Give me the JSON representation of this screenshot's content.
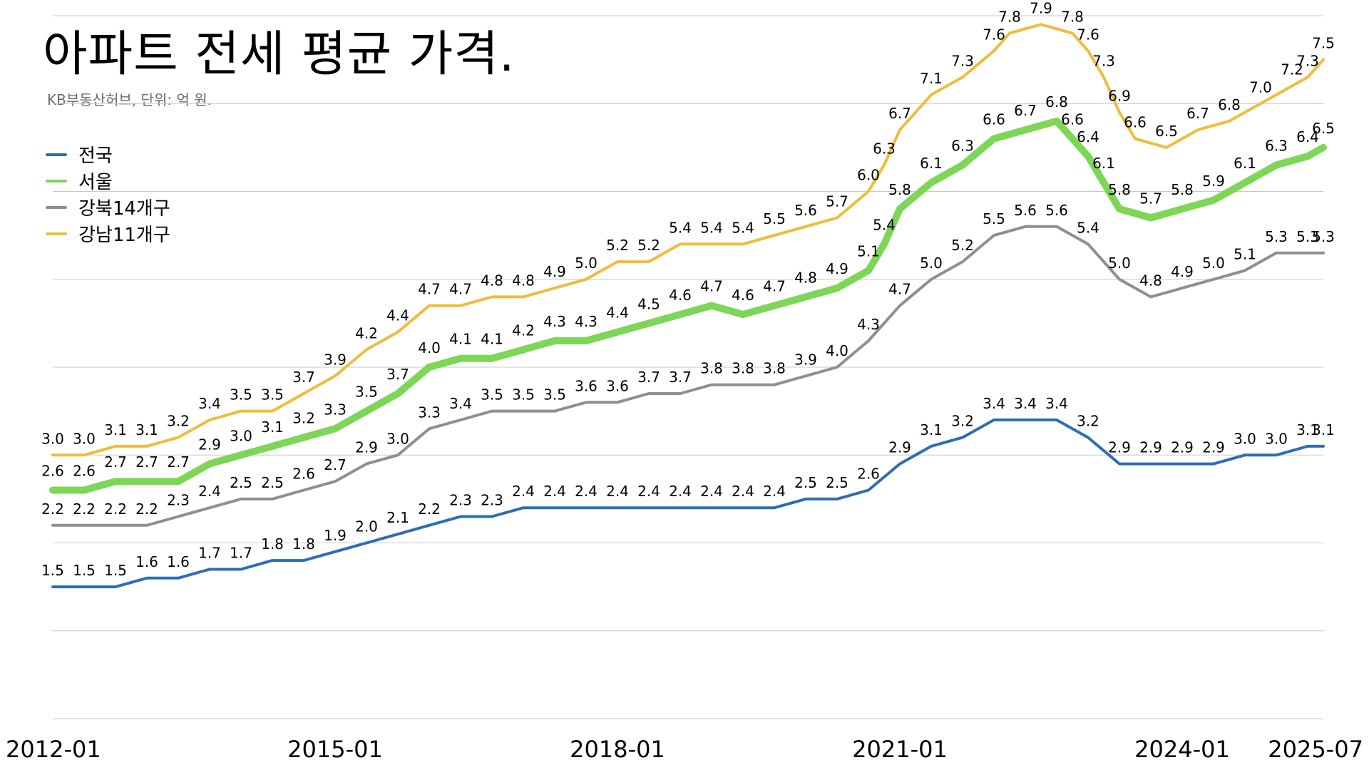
{
  "page": {
    "title": "아파트 전세 평균 가격.",
    "subtitle": "KB부동산허브, 단위: 억 원."
  },
  "chart_data": {
    "type": "line",
    "title": "아파트 전세 평균 가격.",
    "subtitle": "KB부동산허브, 단위: 억 원.",
    "unit": "억 원",
    "xlabel": "",
    "ylabel": "",
    "x_range": [
      "2012-01",
      "2025-07"
    ],
    "ylim": [
      0,
      8
    ],
    "grid": true,
    "legend_position": "top-left",
    "x_ticks": [
      "2012-01",
      "2015-01",
      "2018-01",
      "2021-01",
      "2024-01",
      "2025-07"
    ],
    "series": [
      {
        "name": "전국",
        "color": "#2e6db5",
        "line_width": 4,
        "points": [
          [
            "2012-01",
            1.5
          ],
          [
            "2012-05",
            1.5
          ],
          [
            "2012-09",
            1.5
          ],
          [
            "2013-01",
            1.6
          ],
          [
            "2013-05",
            1.6
          ],
          [
            "2013-09",
            1.7
          ],
          [
            "2014-01",
            1.7
          ],
          [
            "2014-05",
            1.8
          ],
          [
            "2014-09",
            1.8
          ],
          [
            "2015-01",
            1.9
          ],
          [
            "2015-05",
            2.0
          ],
          [
            "2015-09",
            2.1
          ],
          [
            "2016-01",
            2.2
          ],
          [
            "2016-05",
            2.3
          ],
          [
            "2016-09",
            2.3
          ],
          [
            "2017-01",
            2.4
          ],
          [
            "2017-05",
            2.4
          ],
          [
            "2017-09",
            2.4
          ],
          [
            "2018-01",
            2.4
          ],
          [
            "2018-05",
            2.4
          ],
          [
            "2018-09",
            2.4
          ],
          [
            "2019-01",
            2.4
          ],
          [
            "2019-05",
            2.4
          ],
          [
            "2019-09",
            2.4
          ],
          [
            "2020-01",
            2.5
          ],
          [
            "2020-05",
            2.5
          ],
          [
            "2020-09",
            2.6
          ],
          [
            "2021-01",
            2.9
          ],
          [
            "2021-05",
            3.1
          ],
          [
            "2021-09",
            3.2
          ],
          [
            "2022-01",
            3.4
          ],
          [
            "2022-05",
            3.4
          ],
          [
            "2022-09",
            3.4
          ],
          [
            "2023-01",
            3.2
          ],
          [
            "2023-05",
            2.9
          ],
          [
            "2023-09",
            2.9
          ],
          [
            "2024-01",
            2.9
          ],
          [
            "2024-05",
            2.9
          ],
          [
            "2024-09",
            3.0
          ],
          [
            "2025-01",
            3.0
          ],
          [
            "2025-05",
            3.1
          ],
          [
            "2025-07",
            3.1
          ]
        ]
      },
      {
        "name": "서울",
        "color": "#7dd656",
        "line_width": 10,
        "points": [
          [
            "2012-01",
            2.6
          ],
          [
            "2012-05",
            2.6
          ],
          [
            "2012-09",
            2.7
          ],
          [
            "2013-01",
            2.7
          ],
          [
            "2013-05",
            2.7
          ],
          [
            "2013-09",
            2.9
          ],
          [
            "2014-01",
            3.0
          ],
          [
            "2014-05",
            3.1
          ],
          [
            "2014-09",
            3.2
          ],
          [
            "2015-01",
            3.3
          ],
          [
            "2015-05",
            3.5
          ],
          [
            "2015-09",
            3.7
          ],
          [
            "2016-01",
            4.0
          ],
          [
            "2016-05",
            4.1
          ],
          [
            "2016-09",
            4.1
          ],
          [
            "2017-01",
            4.2
          ],
          [
            "2017-05",
            4.3
          ],
          [
            "2017-09",
            4.3
          ],
          [
            "2018-01",
            4.4
          ],
          [
            "2018-05",
            4.5
          ],
          [
            "2018-09",
            4.6
          ],
          [
            "2019-01",
            4.7
          ],
          [
            "2019-05",
            4.6
          ],
          [
            "2019-09",
            4.7
          ],
          [
            "2020-01",
            4.8
          ],
          [
            "2020-05",
            4.9
          ],
          [
            "2020-09",
            5.1
          ],
          [
            "2020-11",
            5.4
          ],
          [
            "2021-01",
            5.8
          ],
          [
            "2021-05",
            6.1
          ],
          [
            "2021-09",
            6.3
          ],
          [
            "2022-01",
            6.6
          ],
          [
            "2022-05",
            6.7
          ],
          [
            "2022-09",
            6.8
          ],
          [
            "2022-11",
            6.6
          ],
          [
            "2023-01",
            6.4
          ],
          [
            "2023-03",
            6.1
          ],
          [
            "2023-05",
            5.8
          ],
          [
            "2023-09",
            5.7
          ],
          [
            "2024-01",
            5.8
          ],
          [
            "2024-05",
            5.9
          ],
          [
            "2024-09",
            6.1
          ],
          [
            "2025-01",
            6.3
          ],
          [
            "2025-05",
            6.4
          ],
          [
            "2025-07",
            6.5
          ]
        ]
      },
      {
        "name": "강북14개구",
        "color": "#8f8f8f",
        "line_width": 4,
        "points": [
          [
            "2012-01",
            2.2
          ],
          [
            "2012-05",
            2.2
          ],
          [
            "2012-09",
            2.2
          ],
          [
            "2013-01",
            2.2
          ],
          [
            "2013-05",
            2.3
          ],
          [
            "2013-09",
            2.4
          ],
          [
            "2014-01",
            2.5
          ],
          [
            "2014-05",
            2.5
          ],
          [
            "2014-09",
            2.6
          ],
          [
            "2015-01",
            2.7
          ],
          [
            "2015-05",
            2.9
          ],
          [
            "2015-09",
            3.0
          ],
          [
            "2016-01",
            3.3
          ],
          [
            "2016-05",
            3.4
          ],
          [
            "2016-09",
            3.5
          ],
          [
            "2017-01",
            3.5
          ],
          [
            "2017-05",
            3.5
          ],
          [
            "2017-09",
            3.6
          ],
          [
            "2018-01",
            3.6
          ],
          [
            "2018-05",
            3.7
          ],
          [
            "2018-09",
            3.7
          ],
          [
            "2019-01",
            3.8
          ],
          [
            "2019-05",
            3.8
          ],
          [
            "2019-09",
            3.8
          ],
          [
            "2020-01",
            3.9
          ],
          [
            "2020-05",
            4.0
          ],
          [
            "2020-09",
            4.3
          ],
          [
            "2021-01",
            4.7
          ],
          [
            "2021-05",
            5.0
          ],
          [
            "2021-09",
            5.2
          ],
          [
            "2022-01",
            5.5
          ],
          [
            "2022-05",
            5.6
          ],
          [
            "2022-09",
            5.6
          ],
          [
            "2023-01",
            5.4
          ],
          [
            "2023-05",
            5.0
          ],
          [
            "2023-09",
            4.8
          ],
          [
            "2024-01",
            4.9
          ],
          [
            "2024-05",
            5.0
          ],
          [
            "2024-09",
            5.1
          ],
          [
            "2025-01",
            5.3
          ],
          [
            "2025-05",
            5.3
          ],
          [
            "2025-07",
            5.3
          ]
        ]
      },
      {
        "name": "강남11개구",
        "color": "#f0bc3c",
        "line_width": 4,
        "points": [
          [
            "2012-01",
            3.0
          ],
          [
            "2012-05",
            3.0
          ],
          [
            "2012-09",
            3.1
          ],
          [
            "2013-01",
            3.1
          ],
          [
            "2013-05",
            3.2
          ],
          [
            "2013-09",
            3.4
          ],
          [
            "2014-01",
            3.5
          ],
          [
            "2014-05",
            3.5
          ],
          [
            "2014-09",
            3.7
          ],
          [
            "2015-01",
            3.9
          ],
          [
            "2015-05",
            4.2
          ],
          [
            "2015-09",
            4.4
          ],
          [
            "2016-01",
            4.7
          ],
          [
            "2016-05",
            4.7
          ],
          [
            "2016-09",
            4.8
          ],
          [
            "2017-01",
            4.8
          ],
          [
            "2017-05",
            4.9
          ],
          [
            "2017-09",
            5.0
          ],
          [
            "2018-01",
            5.2
          ],
          [
            "2018-05",
            5.2
          ],
          [
            "2018-09",
            5.4
          ],
          [
            "2019-01",
            5.4
          ],
          [
            "2019-05",
            5.4
          ],
          [
            "2019-09",
            5.5
          ],
          [
            "2020-01",
            5.6
          ],
          [
            "2020-05",
            5.7
          ],
          [
            "2020-09",
            6.0
          ],
          [
            "2020-11",
            6.3
          ],
          [
            "2021-01",
            6.7
          ],
          [
            "2021-05",
            7.1
          ],
          [
            "2021-09",
            7.3
          ],
          [
            "2022-01",
            7.6
          ],
          [
            "2022-03",
            7.8
          ],
          [
            "2022-07",
            7.9
          ],
          [
            "2022-11",
            7.8
          ],
          [
            "2023-01",
            7.6
          ],
          [
            "2023-03",
            7.3
          ],
          [
            "2023-05",
            6.9
          ],
          [
            "2023-07",
            6.6
          ],
          [
            "2023-11",
            6.5
          ],
          [
            "2024-03",
            6.7
          ],
          [
            "2024-07",
            6.8
          ],
          [
            "2024-11",
            7.0
          ],
          [
            "2025-03",
            7.2
          ],
          [
            "2025-05",
            7.3
          ],
          [
            "2025-07",
            7.5
          ]
        ]
      }
    ]
  }
}
